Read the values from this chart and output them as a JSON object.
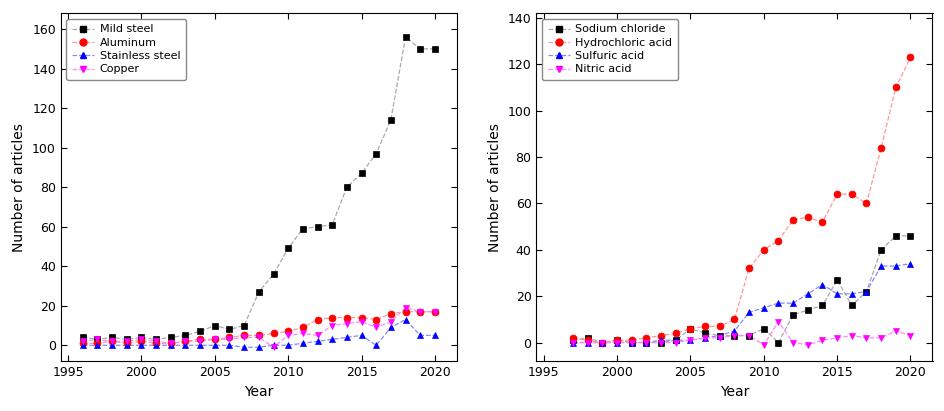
{
  "left": {
    "xlabel": "Year",
    "ylabel": "Number of articles",
    "ylim": [
      -8,
      168
    ],
    "yticks": [
      0,
      20,
      40,
      60,
      80,
      100,
      120,
      140,
      160
    ],
    "xlim": [
      1994.5,
      2021.5
    ],
    "xticks": [
      1995,
      2000,
      2005,
      2010,
      2015,
      2020
    ],
    "series": [
      {
        "label": "Mild steel",
        "color": "#000000",
        "line_color": "#aaaaaa",
        "marker": "s",
        "years": [
          1996,
          1997,
          1998,
          1999,
          2000,
          2001,
          2002,
          2003,
          2004,
          2005,
          2006,
          2007,
          2008,
          2009,
          2010,
          2011,
          2012,
          2013,
          2014,
          2015,
          2016,
          2017,
          2018,
          2019,
          2020
        ],
        "values": [
          4,
          3,
          4,
          3,
          4,
          3,
          4,
          5,
          7,
          10,
          8,
          10,
          27,
          36,
          49,
          59,
          60,
          61,
          80,
          87,
          97,
          114,
          156,
          150,
          150
        ]
      },
      {
        "label": "Aluminum",
        "color": "#ff0000",
        "line_color": "#ff9999",
        "marker": "o",
        "years": [
          1996,
          1997,
          1998,
          1999,
          2000,
          2001,
          2002,
          2003,
          2004,
          2005,
          2006,
          2007,
          2008,
          2009,
          2010,
          2011,
          2012,
          2013,
          2014,
          2015,
          2016,
          2017,
          2018,
          2019,
          2020
        ],
        "values": [
          1,
          1,
          2,
          1,
          2,
          1,
          1,
          2,
          3,
          3,
          4,
          5,
          5,
          6,
          7,
          9,
          13,
          14,
          14,
          14,
          13,
          16,
          17,
          17,
          17
        ]
      },
      {
        "label": "Stainless steel",
        "color": "#0000ff",
        "line_color": "#8888ff",
        "marker": "^",
        "years": [
          1996,
          1997,
          1998,
          1999,
          2000,
          2001,
          2002,
          2003,
          2004,
          2005,
          2006,
          2007,
          2008,
          2009,
          2010,
          2011,
          2012,
          2013,
          2014,
          2015,
          2016,
          2017,
          2018,
          2019,
          2020
        ],
        "values": [
          0,
          0,
          0,
          0,
          0,
          0,
          0,
          0,
          0,
          0,
          0,
          -1,
          -1,
          0,
          0,
          1,
          2,
          3,
          4,
          5,
          0,
          9,
          13,
          5,
          5
        ]
      },
      {
        "label": "Copper",
        "color": "#ff00ff",
        "line_color": "#ff88ff",
        "marker": "v",
        "years": [
          1996,
          1997,
          1998,
          1999,
          2000,
          2001,
          2002,
          2003,
          2004,
          2005,
          2006,
          2007,
          2008,
          2009,
          2010,
          2011,
          2012,
          2013,
          2014,
          2015,
          2016,
          2017,
          2018,
          2019,
          2020
        ],
        "values": [
          2,
          3,
          2,
          2,
          3,
          2,
          1,
          2,
          2,
          3,
          3,
          4,
          4,
          -1,
          5,
          6,
          5,
          10,
          11,
          12,
          9,
          12,
          19,
          17,
          17
        ]
      }
    ]
  },
  "right": {
    "xlabel": "Year",
    "ylabel": "Number of articles",
    "ylim": [
      -8,
      142
    ],
    "yticks": [
      0,
      20,
      40,
      60,
      80,
      100,
      120,
      140
    ],
    "xlim": [
      1994.5,
      2021.5
    ],
    "xticks": [
      1995,
      2000,
      2005,
      2010,
      2015,
      2020
    ],
    "series": [
      {
        "label": "Sodium chloride",
        "color": "#000000",
        "line_color": "#aaaaaa",
        "marker": "s",
        "years": [
          1997,
          1998,
          1999,
          2000,
          2001,
          2002,
          2003,
          2004,
          2005,
          2006,
          2007,
          2008,
          2009,
          2010,
          2011,
          2012,
          2013,
          2014,
          2015,
          2016,
          2017,
          2018,
          2019,
          2020
        ],
        "values": [
          1,
          2,
          0,
          1,
          0,
          0,
          0,
          1,
          6,
          4,
          3,
          3,
          3,
          6,
          0,
          12,
          14,
          16,
          27,
          16,
          22,
          40,
          46,
          46
        ]
      },
      {
        "label": "Hydrochloric acid",
        "color": "#ff0000",
        "line_color": "#ff9999",
        "marker": "o",
        "years": [
          1997,
          1998,
          1999,
          2000,
          2001,
          2002,
          2003,
          2004,
          2005,
          2006,
          2007,
          2008,
          2009,
          2010,
          2011,
          2012,
          2013,
          2014,
          2015,
          2016,
          2017,
          2018,
          2019,
          2020
        ],
        "values": [
          2,
          1,
          0,
          1,
          1,
          2,
          3,
          4,
          6,
          7,
          7,
          10,
          32,
          40,
          44,
          53,
          54,
          52,
          64,
          64,
          60,
          84,
          110,
          123
        ]
      },
      {
        "label": "Sulfuric acid",
        "color": "#0000ff",
        "line_color": "#8888ff",
        "marker": "^",
        "years": [
          1997,
          1998,
          1999,
          2000,
          2001,
          2002,
          2003,
          2004,
          2005,
          2006,
          2007,
          2008,
          2009,
          2010,
          2011,
          2012,
          2013,
          2014,
          2015,
          2016,
          2017,
          2018,
          2019,
          2020
        ],
        "values": [
          0,
          0,
          0,
          0,
          0,
          0,
          1,
          1,
          1,
          2,
          3,
          5,
          13,
          15,
          17,
          17,
          21,
          25,
          21,
          21,
          22,
          33,
          33,
          34
        ]
      },
      {
        "label": "Nitric acid",
        "color": "#ff00ff",
        "line_color": "#ff88ff",
        "marker": "v",
        "years": [
          1997,
          1998,
          1999,
          2000,
          2001,
          2002,
          2003,
          2004,
          2005,
          2006,
          2007,
          2008,
          2009,
          2010,
          2011,
          2012,
          2013,
          2014,
          2015,
          2016,
          2017,
          2018,
          2019,
          2020
        ],
        "values": [
          0,
          0,
          0,
          0,
          0,
          0,
          0,
          0,
          1,
          2,
          2,
          3,
          3,
          -1,
          9,
          0,
          -1,
          1,
          2,
          3,
          2,
          2,
          5,
          3
        ]
      }
    ]
  }
}
